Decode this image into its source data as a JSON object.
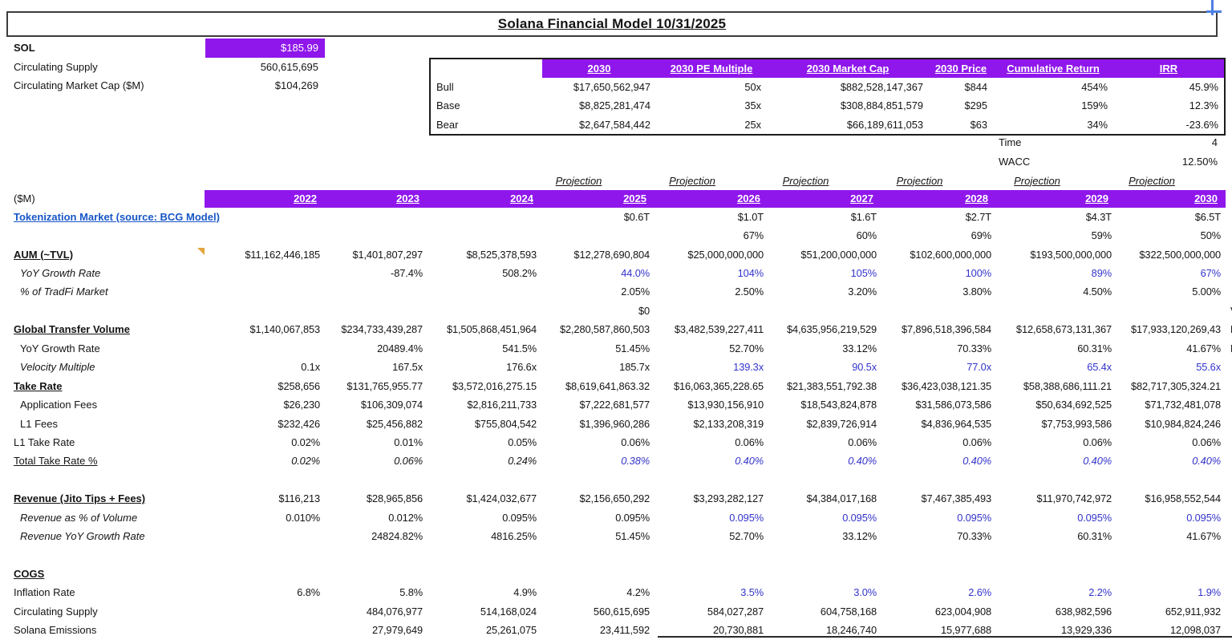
{
  "title": "Solana Financial Model 10/31/2025",
  "colors": {
    "header_purple": "#8f17eb",
    "projection_blue": "#3333cb",
    "link_blue": "#1856c6",
    "note_orange": "#e2a43c",
    "selection_blue": "#4e7fe3"
  },
  "top_left": {
    "rows": [
      {
        "label": "SOL",
        "value": "$185.99",
        "bold": true,
        "highlight": true
      },
      {
        "label": "Circulating Supply",
        "value": "560,615,695",
        "bold": false,
        "highlight": false
      },
      {
        "label": "Circulating Market Cap ($M)",
        "value": "$104,269",
        "bold": false,
        "highlight": false
      }
    ]
  },
  "scenario_table": {
    "headers": [
      "2030",
      "2030 PE Multiple",
      "2030 Market Cap",
      "2030 Price",
      "Cumulative Return",
      "IRR"
    ],
    "rows": [
      {
        "label": "Bull",
        "values": [
          "$17,650,562,947",
          "50x",
          "$882,528,147,367",
          "$844",
          "454%",
          "45.9%"
        ]
      },
      {
        "label": "Base",
        "values": [
          "$8,825,281,474",
          "35x",
          "$308,884,851,579",
          "$295",
          "159%",
          "12.3%"
        ]
      },
      {
        "label": "Bear",
        "values": [
          "$2,647,584,442",
          "25x",
          "$66,189,611,053",
          "$63",
          "34%",
          "-23.6%"
        ]
      }
    ]
  },
  "discount": {
    "time_label": "Time",
    "time_value": "4",
    "wacc_label": "WACC",
    "wacc_value": "12.50%"
  },
  "projection_label": "Projection",
  "main_table": {
    "unit_label": "($M)",
    "years": [
      "2022",
      "2023",
      "2024",
      "2025",
      "2026",
      "2027",
      "2028",
      "2029",
      "2030"
    ],
    "projection_from_year_index": 3,
    "rows": [
      {
        "label": "Tokenization Market (source: BCG Model)",
        "ls": [
          "link"
        ],
        "v": [
          "",
          "",
          "",
          "$0.6T",
          "$1.0T",
          "$1.6T",
          "$2.7T",
          "$4.3T",
          "$6.5T"
        ],
        "blue": []
      },
      {
        "label": "",
        "ls": [],
        "v": [
          "",
          "",
          "",
          "",
          "67%",
          "60%",
          "69%",
          "59%",
          "50%"
        ],
        "blue": []
      },
      {
        "label": "AUM (~TVL)",
        "ls": [
          "bold",
          "underline"
        ],
        "note": true,
        "v": [
          "$11,162,446,185",
          "$1,401,807,297",
          "$8,525,378,593",
          "$12,278,690,804",
          "$25,000,000,000",
          "$51,200,000,000",
          "$102,600,000,000",
          "$193,500,000,000",
          "$322,500,000,000"
        ],
        "blue": []
      },
      {
        "label": "YoY Growth Rate",
        "ls": [
          "italic",
          "indent"
        ],
        "v": [
          "",
          "-87.4%",
          "508.2%",
          "44.0%",
          "104%",
          "105%",
          "100%",
          "89%",
          "67%"
        ],
        "blue": [
          3,
          4,
          5,
          6,
          7,
          8
        ]
      },
      {
        "label": "% of TradFi Market",
        "ls": [
          "italic",
          "indent"
        ],
        "v": [
          "",
          "",
          "",
          "2.05%",
          "2.50%",
          "3.20%",
          "3.80%",
          "4.50%",
          "5.00%"
        ],
        "blue": []
      },
      {
        "label": "",
        "ls": [],
        "v": [
          "",
          "",
          "",
          "$0",
          "",
          "",
          "",
          "",
          ""
        ],
        "blue": [],
        "frag": "V"
      },
      {
        "label": "Global Transfer Volume",
        "ls": [
          "bold",
          "underline"
        ],
        "v": [
          "$1,140,067,853",
          "$234,733,439,287",
          "$1,505,868,451,964",
          "$2,280,587,860,503",
          "$3,482,539,227,411",
          "$4,635,956,219,529",
          "$7,896,518,396,584",
          "$12,658,673,131,367",
          "$17,933,120,269,43"
        ],
        "blue": [],
        "frag": "B"
      },
      {
        "label": "YoY Growth Rate",
        "ls": [
          "indent"
        ],
        "v": [
          "",
          "20489.4%",
          "541.5%",
          "51.45%",
          "52.70%",
          "33.12%",
          "70.33%",
          "60.31%",
          "41.67%"
        ],
        "blue": [],
        "frag": "B"
      },
      {
        "label": "Velocity Multiple",
        "ls": [
          "italic",
          "indent"
        ],
        "v": [
          "0.1x",
          "167.5x",
          "176.6x",
          "185.7x",
          "139.3x",
          "90.5x",
          "77.0x",
          "65.4x",
          "55.6x"
        ],
        "blue": [
          4,
          5,
          6,
          7,
          8
        ]
      },
      {
        "label": "Take Rate",
        "ls": [
          "bold",
          "underline"
        ],
        "v": [
          "$258,656",
          "$131,765,955.77",
          "$3,572,016,275.15",
          "$8,619,641,863.32",
          "$16,063,365,228.65",
          "$21,383,551,792.38",
          "$36,423,038,121.35",
          "$58,388,686,111.21",
          "$82,717,305,324.21"
        ],
        "blue": []
      },
      {
        "label": "Application Fees",
        "ls": [
          "indent"
        ],
        "v": [
          "$26,230",
          "$106,309,074",
          "$2,816,211,733",
          "$7,222,681,577",
          "$13,930,156,910",
          "$18,543,824,878",
          "$31,586,073,586",
          "$50,634,692,525",
          "$71,732,481,078"
        ],
        "blue": []
      },
      {
        "label": "L1 Fees",
        "ls": [
          "indent"
        ],
        "v": [
          "$232,426",
          "$25,456,882",
          "$755,804,542",
          "$1,396,960,286",
          "$2,133,208,319",
          "$2,839,726,914",
          "$4,836,964,535",
          "$7,753,993,586",
          "$10,984,824,246"
        ],
        "blue": []
      },
      {
        "label": "L1 Take Rate",
        "ls": [],
        "v": [
          "0.02%",
          "0.01%",
          "0.05%",
          "0.06%",
          "0.06%",
          "0.06%",
          "0.06%",
          "0.06%",
          "0.06%"
        ],
        "blue": []
      },
      {
        "label": "Total Take Rate %",
        "ls": [
          "underline"
        ],
        "vi": true,
        "v": [
          "0.02%",
          "0.06%",
          "0.24%",
          "0.38%",
          "0.40%",
          "0.40%",
          "0.40%",
          "0.40%",
          "0.40%"
        ],
        "blue": [
          3,
          4,
          5,
          6,
          7,
          8
        ]
      },
      {
        "label": "",
        "ls": [],
        "v": [
          "",
          "",
          "",
          "",
          "",
          "",
          "",
          "",
          ""
        ],
        "blue": []
      },
      {
        "label": "Revenue (Jito Tips + Fees)",
        "ls": [
          "bold",
          "underline"
        ],
        "v": [
          "$116,213",
          "$28,965,856",
          "$1,424,032,677",
          "$2,156,650,292",
          "$3,293,282,127",
          "$4,384,017,168",
          "$7,467,385,493",
          "$11,970,742,972",
          "$16,958,552,544"
        ],
        "blue": []
      },
      {
        "label": "Revenue as % of Volume",
        "ls": [
          "italic",
          "indent"
        ],
        "v": [
          "0.010%",
          "0.012%",
          "0.095%",
          "0.095%",
          "0.095%",
          "0.095%",
          "0.095%",
          "0.095%",
          "0.095%"
        ],
        "blue": [
          4,
          5,
          6,
          7,
          8
        ]
      },
      {
        "label": "Revenue YoY Growth Rate",
        "ls": [
          "italic",
          "indent"
        ],
        "v": [
          "",
          "24824.82%",
          "4816.25%",
          "51.45%",
          "52.70%",
          "33.12%",
          "70.33%",
          "60.31%",
          "41.67%"
        ],
        "blue": []
      },
      {
        "label": "",
        "ls": [],
        "v": [
          "",
          "",
          "",
          "",
          "",
          "",
          "",
          "",
          ""
        ],
        "blue": []
      },
      {
        "label": "COGS",
        "ls": [
          "bold",
          "underline"
        ],
        "v": [
          "",
          "",
          "",
          "",
          "",
          "",
          "",
          "",
          ""
        ],
        "blue": []
      },
      {
        "label": "Inflation Rate",
        "ls": [],
        "v": [
          "6.8%",
          "5.8%",
          "4.9%",
          "4.2%",
          "3.5%",
          "3.0%",
          "2.6%",
          "2.2%",
          "1.9%"
        ],
        "blue": [
          4,
          5,
          6,
          7,
          8
        ]
      },
      {
        "label": "Circulating Supply",
        "ls": [],
        "v": [
          "",
          "484,076,977",
          "514,168,024",
          "560,615,695",
          "584,027,287",
          "604,758,168",
          "623,004,908",
          "638,982,596",
          "652,911,932"
        ],
        "blue": []
      },
      {
        "label": "Solana Emissions",
        "ls": [],
        "v": [
          "",
          "27,979,649",
          "25,261,075",
          "23,411,592",
          "20,730,881",
          "18,246,740",
          "15,977,688",
          "13,929,336",
          "12,098,037"
        ],
        "blue": []
      }
    ]
  }
}
